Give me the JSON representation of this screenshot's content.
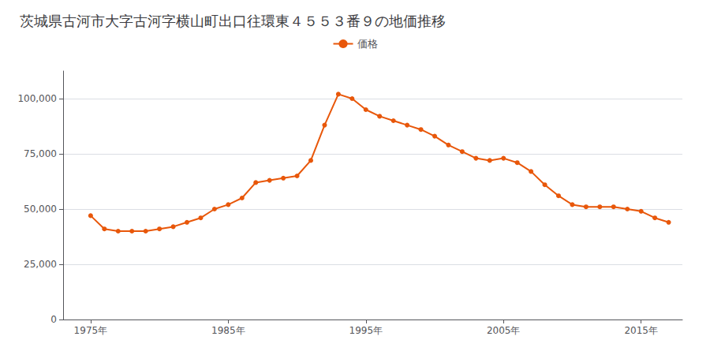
{
  "chart_data": {
    "type": "line",
    "title": "茨城県古河市大字古河字横山町出口往環東４５５３番９の地価推移",
    "x": [
      1975,
      1976,
      1977,
      1978,
      1979,
      1980,
      1981,
      1982,
      1983,
      1984,
      1985,
      1986,
      1987,
      1988,
      1989,
      1990,
      1991,
      1992,
      1993,
      1994,
      1995,
      1996,
      1997,
      1998,
      1999,
      2000,
      2001,
      2002,
      2003,
      2004,
      2005,
      2006,
      2007,
      2008,
      2009,
      2010,
      2011,
      2012,
      2013,
      2014,
      2015,
      2016,
      2017
    ],
    "series": [
      {
        "name": "価格",
        "color": "#E8570A",
        "values": [
          47000,
          41000,
          40000,
          40000,
          40000,
          41000,
          42000,
          44000,
          46000,
          50000,
          52000,
          55000,
          62000,
          63000,
          64000,
          65000,
          72000,
          88000,
          102000,
          100000,
          95000,
          92000,
          90000,
          88000,
          86000,
          83000,
          79000,
          76000,
          73000,
          72000,
          73000,
          71000,
          67000,
          61000,
          56000,
          52000,
          51000,
          51000,
          51000,
          50000,
          49000,
          46000,
          44000
        ]
      }
    ],
    "xlim": [
      1973,
      2018
    ],
    "xticks": [
      {
        "value": 1975,
        "label": "1975年"
      },
      {
        "value": 1985,
        "label": "1985年"
      },
      {
        "value": 1995,
        "label": "1995年"
      },
      {
        "value": 2005,
        "label": "2005年"
      },
      {
        "value": 2015,
        "label": "2015年"
      }
    ],
    "ylim": [
      0,
      112500
    ],
    "yticks": [
      0,
      {
        "value": 25000,
        "label": "25,000"
      },
      {
        "value": 50000,
        "label": "50,000"
      },
      {
        "value": 75000,
        "label": "75,000"
      },
      {
        "value": 100000,
        "label": "100,000"
      }
    ],
    "grid": "y",
    "legend": "top",
    "marker": "circle",
    "background_color": "#ffffff"
  }
}
